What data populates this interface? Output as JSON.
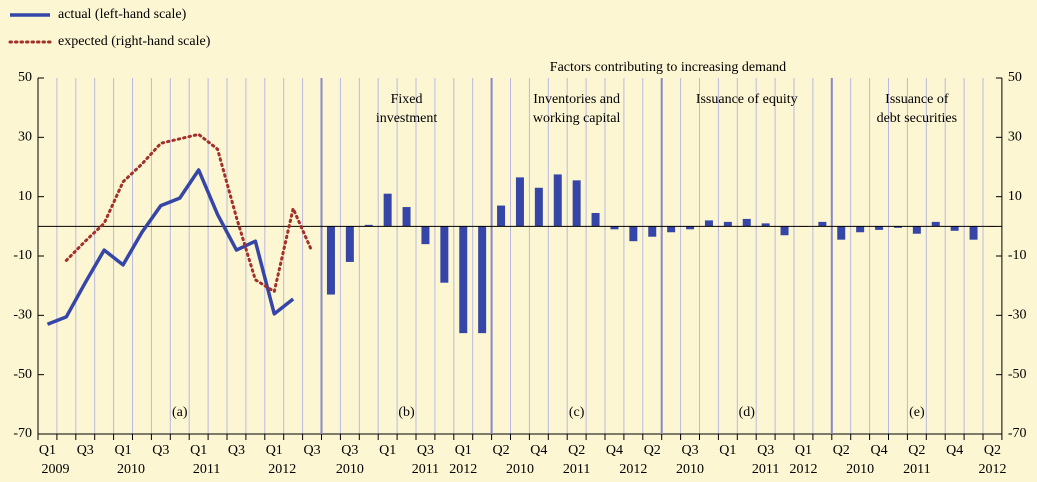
{
  "chart_data": {
    "type": "bar",
    "title": "Factors contributing to increasing demand",
    "ylim": [
      -70,
      50
    ],
    "yticks": [
      50,
      30,
      10,
      -10,
      -30,
      -50,
      -70
    ],
    "y2lim": [
      -70,
      50
    ],
    "y2ticks": [
      50,
      30,
      10,
      -10,
      -30,
      -50,
      -70
    ],
    "panels": [
      {
        "label": "(a)",
        "categories": [
          "Q1",
          null,
          "Q3",
          null,
          "Q1",
          null,
          "Q3",
          null,
          "Q1",
          null,
          "Q3",
          null,
          "Q1",
          null,
          "Q3"
        ],
        "years": [
          "2009",
          null,
          null,
          null,
          "2010",
          null,
          null,
          null,
          "2011",
          null,
          null,
          null,
          "2012",
          null,
          null
        ],
        "series": [
          {
            "name": "actual (left-hand scale)",
            "type": "line",
            "style": "solid",
            "color": "#3546a8",
            "values": [
              -33,
              -30.5,
              -19,
              -8,
              -13,
              -2,
              7,
              9.5,
              19,
              4,
              -8,
              -5,
              -29.5,
              -24.5,
              null
            ]
          },
          {
            "name": "expected (right-hand scale)",
            "type": "line",
            "style": "dotted",
            "color": "#a3302b",
            "axis": "y2",
            "values": [
              null,
              -11.5,
              -5,
              1,
              15,
              21,
              28,
              29.5,
              31,
              26,
              3,
              -18,
              -22,
              6,
              -8.5
            ]
          }
        ]
      },
      {
        "label": "(b)",
        "title": [
          "Fixed",
          "investment"
        ],
        "categories": [
          null,
          "Q3",
          null,
          "Q1",
          null,
          "Q3",
          null,
          "Q1",
          null
        ],
        "years": [
          null,
          "2010",
          null,
          null,
          null,
          "2011",
          null,
          "2012",
          null
        ],
        "color": "#3546a8",
        "values": [
          -23,
          -12,
          0.5,
          11,
          6.5,
          -6,
          -19,
          -36,
          -36
        ]
      },
      {
        "label": "(c)",
        "title": [
          "Inventories and",
          "working capital"
        ],
        "categories": [
          "Q2",
          null,
          "Q4",
          null,
          "Q2",
          null,
          "Q4",
          null,
          "Q2"
        ],
        "years": [
          null,
          "2010",
          null,
          null,
          "2011",
          null,
          null,
          "2012",
          null
        ],
        "color": "#3546a8",
        "values": [
          7,
          16.5,
          13,
          17.5,
          15.5,
          4.5,
          -1,
          -5,
          -3.5
        ]
      },
      {
        "label": "(d)",
        "title": [
          "Issuance of equity"
        ],
        "categories": [
          null,
          "Q3",
          null,
          "Q1",
          null,
          "Q3",
          null,
          "Q1",
          null
        ],
        "years": [
          null,
          "2010",
          null,
          null,
          null,
          "2011",
          null,
          "2012",
          null
        ],
        "color": "#3546a8",
        "values": [
          -2,
          -1,
          2,
          1.5,
          2.5,
          1,
          -3,
          0,
          1.5
        ]
      },
      {
        "label": "(e)",
        "title": [
          "Issuance of",
          "debt securities"
        ],
        "categories": [
          "Q2",
          null,
          "Q4",
          null,
          "Q2",
          null,
          "Q4",
          null,
          "Q2"
        ],
        "years": [
          null,
          "2010",
          null,
          null,
          "2011",
          null,
          null,
          null,
          "2012"
        ],
        "color": "#3546a8",
        "values": [
          -4.5,
          -2,
          -1.2,
          -0.5,
          -2.5,
          1.5,
          -1.5,
          -4.5,
          0
        ]
      }
    ]
  }
}
